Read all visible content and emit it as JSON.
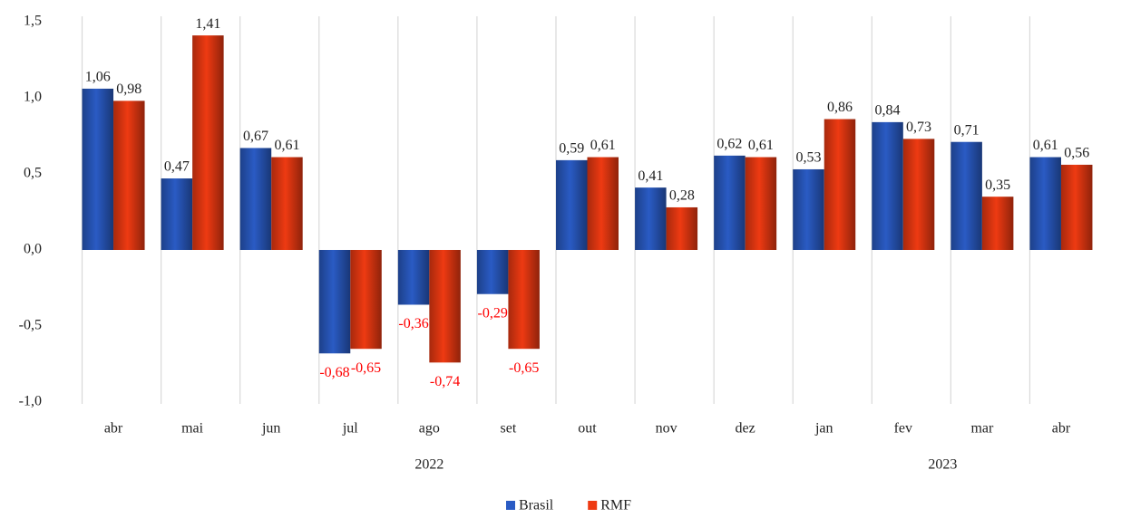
{
  "chart_data": {
    "type": "grouped_bar",
    "categories": [
      "abr",
      "mai",
      "jun",
      "jul",
      "ago",
      "set",
      "out",
      "nov",
      "dez",
      "jan",
      "fev",
      "mar",
      "abr"
    ],
    "x_groups": [
      {
        "label": "2022",
        "count": 9
      },
      {
        "label": "2023",
        "count": 4
      }
    ],
    "series": [
      {
        "name": "Brasil",
        "color": "#2a5bc4",
        "values": [
          1.06,
          0.47,
          0.67,
          -0.68,
          -0.36,
          -0.29,
          0.59,
          0.41,
          0.62,
          0.53,
          0.84,
          0.71,
          0.61
        ],
        "value_labels": [
          "1,06",
          "0,47",
          "0,67",
          "-0,68",
          "-0,36",
          "-0,29",
          "0,59",
          "0,41",
          "0,62",
          "0,53",
          "0,84",
          "0,71",
          "0,61"
        ]
      },
      {
        "name": "RMF",
        "color": "#ee3a12",
        "values": [
          0.98,
          1.41,
          0.61,
          -0.65,
          -0.74,
          -0.65,
          0.61,
          0.28,
          0.61,
          0.86,
          0.73,
          0.35,
          0.56
        ],
        "value_labels": [
          "0,98",
          "1,41",
          "0,61",
          "-0,65",
          "-0,74",
          "-0,65",
          "0,61",
          "0,28",
          "0,61",
          "0,86",
          "0,73",
          "0,35",
          "0,56"
        ]
      }
    ],
    "ylim": [
      -1.0,
      1.5
    ],
    "yticks": [
      {
        "value": -1.0,
        "label": "-1,0"
      },
      {
        "value": -0.5,
        "label": "-0,5"
      },
      {
        "value": 0.0,
        "label": "0,0"
      },
      {
        "value": 0.5,
        "label": "0,5"
      },
      {
        "value": 1.0,
        "label": "1,0"
      },
      {
        "value": 1.5,
        "label": "1,5"
      }
    ],
    "negative_label_color": "#ff0000",
    "legend": "bottom"
  }
}
